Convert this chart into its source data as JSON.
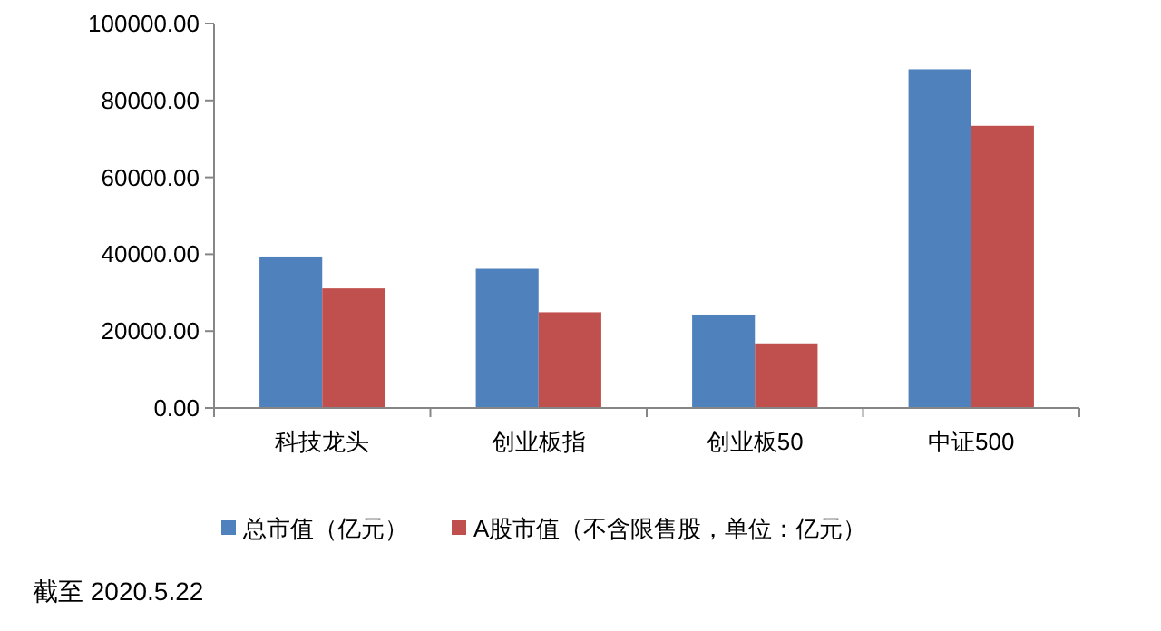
{
  "chart_data": {
    "type": "bar",
    "categories": [
      "科技龙头",
      "创业板指",
      "创业板50",
      "中证500"
    ],
    "series": [
      {
        "name": "总市值（亿元）",
        "color": "#4f81bd",
        "values": [
          39400,
          36200,
          24300,
          88100
        ]
      },
      {
        "name": "A股市值（不含限售股，单位：亿元）",
        "color": "#c0504d",
        "values": [
          31100,
          24900,
          16800,
          73400
        ]
      }
    ],
    "ylim": [
      0,
      100000
    ],
    "yticks": [
      {
        "value": 0,
        "label": "0.00"
      },
      {
        "value": 20000,
        "label": "20000.00"
      },
      {
        "value": 40000,
        "label": "40000.00"
      },
      {
        "value": 60000,
        "label": "60000.00"
      },
      {
        "value": 80000,
        "label": "80000.00"
      },
      {
        "value": 100000,
        "label": "100000.00"
      }
    ],
    "grid": false,
    "legend": "bottom",
    "annotations": [
      "截至 2020.5.22"
    ]
  }
}
